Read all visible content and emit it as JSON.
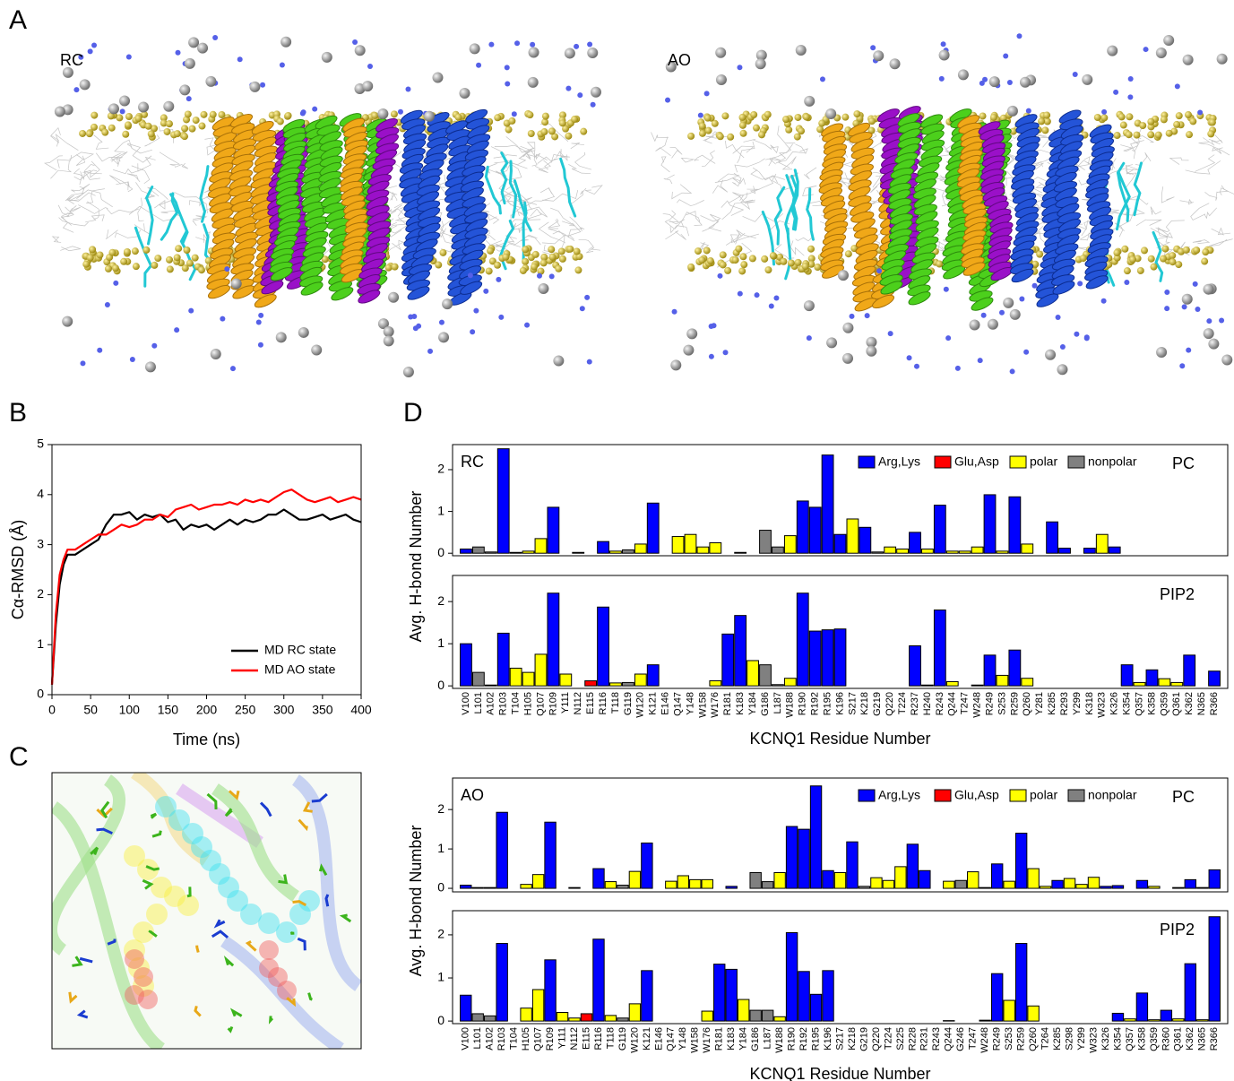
{
  "figure": {
    "panel_labels": [
      "A",
      "B",
      "C",
      "D"
    ],
    "structure_labels": [
      "RC",
      "AO"
    ]
  },
  "chart_data": [
    {
      "type": "line",
      "xlabel": "Time (ns)",
      "ylabel": "Cα-RMSD (Å)",
      "x": [
        0,
        5,
        10,
        15,
        20,
        30,
        40,
        50,
        60,
        70,
        80,
        90,
        100,
        110,
        120,
        130,
        140,
        150,
        160,
        170,
        180,
        190,
        200,
        210,
        220,
        230,
        240,
        250,
        260,
        270,
        280,
        290,
        300,
        310,
        320,
        330,
        340,
        350,
        360,
        370,
        380,
        390,
        400
      ],
      "series": [
        {
          "name": "MD RC state",
          "color": "#000000",
          "values": [
            0.2,
            1.4,
            2.2,
            2.6,
            2.8,
            2.8,
            2.9,
            3.0,
            3.1,
            3.4,
            3.6,
            3.6,
            3.65,
            3.5,
            3.6,
            3.55,
            3.6,
            3.45,
            3.5,
            3.3,
            3.4,
            3.35,
            3.4,
            3.3,
            3.4,
            3.5,
            3.4,
            3.5,
            3.45,
            3.5,
            3.6,
            3.6,
            3.7,
            3.6,
            3.5,
            3.5,
            3.55,
            3.6,
            3.5,
            3.55,
            3.6,
            3.5,
            3.45
          ]
        },
        {
          "name": "MD AO state",
          "color": "#ff0000",
          "values": [
            0.2,
            1.6,
            2.4,
            2.7,
            2.9,
            2.9,
            3.0,
            3.1,
            3.2,
            3.2,
            3.3,
            3.4,
            3.35,
            3.4,
            3.5,
            3.5,
            3.6,
            3.55,
            3.7,
            3.75,
            3.8,
            3.7,
            3.75,
            3.8,
            3.8,
            3.85,
            3.8,
            3.9,
            3.85,
            3.9,
            3.85,
            3.95,
            4.05,
            4.1,
            4.0,
            3.9,
            3.85,
            3.9,
            3.95,
            3.85,
            3.9,
            3.95,
            3.9
          ]
        }
      ],
      "xlim": [
        0,
        400
      ],
      "xticks": [
        0,
        50,
        100,
        150,
        200,
        250,
        300,
        350,
        400
      ],
      "ylim": [
        0,
        5
      ],
      "yticks": [
        0,
        1,
        2,
        3,
        4,
        5
      ],
      "legend": "lower right"
    },
    {
      "type": "bar",
      "state": "RC",
      "xlabel": "KCNQ1 Residue Number",
      "ylabel": "Avg. H-bond Number",
      "categories": [
        "V100",
        "L101",
        "A102",
        "R103",
        "T104",
        "H105",
        "Q107",
        "R109",
        "Y111",
        "N112",
        "E115",
        "R116",
        "T118",
        "G119",
        "W120",
        "K121",
        "E146",
        "Q147",
        "Y148",
        "W158",
        "W176",
        "R181",
        "K183",
        "Y184",
        "G186",
        "L187",
        "W188",
        "R190",
        "R192",
        "R195",
        "K196",
        "S217",
        "K218",
        "G219",
        "Q220",
        "T224",
        "R237",
        "H240",
        "R243",
        "Q244",
        "T247",
        "W248",
        "R249",
        "S253",
        "R259",
        "Q260",
        "Y281",
        "K285",
        "R293",
        "Y299",
        "K318",
        "W323",
        "K326",
        "K354",
        "Q357",
        "K358",
        "Q359",
        "Q361",
        "K362",
        "N365",
        "R366"
      ],
      "category_series": [
        0,
        3,
        3,
        0,
        2,
        2,
        2,
        0,
        2,
        2,
        1,
        0,
        2,
        3,
        2,
        0,
        1,
        2,
        2,
        2,
        2,
        0,
        0,
        2,
        3,
        3,
        2,
        0,
        0,
        0,
        0,
        2,
        0,
        3,
        2,
        2,
        0,
        2,
        0,
        2,
        2,
        2,
        0,
        2,
        0,
        2,
        2,
        0,
        0,
        2,
        0,
        2,
        0,
        0,
        2,
        0,
        2,
        2,
        0,
        2,
        0
      ],
      "series": [
        {
          "name": "Arg,Lys",
          "color": "#0000ff"
        },
        {
          "name": "Glu,Asp",
          "color": "#ff0000"
        },
        {
          "name": "polar",
          "color": "#ffff00"
        },
        {
          "name": "nonpolar",
          "color": "#808080"
        }
      ],
      "legend": "upper right",
      "panels": [
        {
          "label": "PC",
          "ylim": [
            -0.06,
            2.6
          ],
          "yticks": [
            0,
            1,
            2
          ],
          "values": [
            0.1,
            0.15,
            0.03,
            2.5,
            0.02,
            0.05,
            0.35,
            1.1,
            0,
            0.02,
            0,
            0.28,
            0.05,
            0.08,
            0.22,
            1.2,
            0,
            0.4,
            0.45,
            0.15,
            0.25,
            0,
            0.02,
            0,
            0.55,
            0.15,
            0.42,
            1.25,
            1.1,
            2.35,
            0.45,
            0.82,
            0.62,
            0.03,
            0.15,
            0.1,
            0.5,
            0.1,
            1.15,
            0.05,
            0.05,
            0.15,
            1.4,
            0.05,
            1.35,
            0.22,
            0,
            0.75,
            0.12,
            0,
            0.12,
            0.45,
            0.15,
            0,
            0,
            0,
            0,
            0,
            0,
            0,
            0
          ]
        },
        {
          "label": "PIP2",
          "ylim": [
            -0.06,
            2.62
          ],
          "yticks": [
            0,
            1,
            2
          ],
          "values": [
            1.0,
            0.32,
            0.02,
            1.25,
            0.42,
            0.32,
            0.75,
            2.2,
            0.28,
            0,
            0.12,
            1.87,
            0.07,
            0.08,
            0.28,
            0.5,
            0,
            0,
            0,
            0,
            0.12,
            1.23,
            1.67,
            0.6,
            0.5,
            0.03,
            0.18,
            2.2,
            1.3,
            1.33,
            1.35,
            0,
            0,
            0,
            0,
            0,
            0.95,
            0.02,
            1.8,
            0.1,
            0,
            0.02,
            0.73,
            0.25,
            0.85,
            0.18,
            0,
            0,
            0,
            0,
            0,
            0,
            0,
            0.5,
            0.08,
            0.38,
            0.17,
            0.08,
            0.73,
            0,
            0.35
          ]
        }
      ]
    },
    {
      "type": "bar",
      "state": "AO",
      "xlabel": "KCNQ1 Residue Number",
      "ylabel": "Avg. H-bond Number",
      "categories": [
        "V100",
        "L101",
        "A102",
        "R103",
        "T104",
        "H105",
        "Q107",
        "R109",
        "Y111",
        "N112",
        "E115",
        "R116",
        "T118",
        "G119",
        "W120",
        "K121",
        "E146",
        "Q147",
        "Y148",
        "W158",
        "W176",
        "R181",
        "K183",
        "Y184",
        "G186",
        "L187",
        "W188",
        "R190",
        "R192",
        "R195",
        "K196",
        "S217",
        "K218",
        "G219",
        "Q220",
        "T224",
        "S225",
        "R228",
        "R231",
        "R243",
        "Q244",
        "G246",
        "T247",
        "W248",
        "R249",
        "S253",
        "R259",
        "Q260",
        "T264",
        "K285",
        "S298",
        "Y299",
        "W323",
        "K326",
        "K354",
        "Q357",
        "K358",
        "Q359",
        "R360",
        "Q361",
        "K362",
        "N365",
        "R366"
      ],
      "category_series": [
        0,
        3,
        3,
        0,
        2,
        2,
        2,
        0,
        2,
        2,
        1,
        0,
        2,
        3,
        2,
        0,
        1,
        2,
        2,
        2,
        2,
        0,
        0,
        2,
        3,
        3,
        2,
        0,
        0,
        0,
        0,
        2,
        0,
        3,
        2,
        2,
        2,
        0,
        0,
        0,
        2,
        3,
        2,
        2,
        0,
        2,
        0,
        2,
        2,
        0,
        2,
        2,
        2,
        0,
        0,
        2,
        0,
        2,
        0,
        2,
        0,
        2,
        0
      ],
      "series": [
        {
          "name": "Arg,Lys",
          "color": "#0000ff"
        },
        {
          "name": "Glu,Asp",
          "color": "#ff0000"
        },
        {
          "name": "polar",
          "color": "#ffff00"
        },
        {
          "name": "nonpolar",
          "color": "#808080"
        }
      ],
      "legend": "upper right",
      "panels": [
        {
          "label": "PC",
          "ylim": [
            -0.09,
            2.8
          ],
          "yticks": [
            0,
            1,
            2
          ],
          "values": [
            0.08,
            0.02,
            0.02,
            1.93,
            0,
            0.1,
            0.35,
            1.68,
            0,
            0.02,
            0,
            0.5,
            0.17,
            0.08,
            0.43,
            1.15,
            0,
            0.18,
            0.32,
            0.22,
            0.22,
            0,
            0.05,
            0,
            0.4,
            0.17,
            0.4,
            1.57,
            1.5,
            2.6,
            0.45,
            0.4,
            1.18,
            0.05,
            0.27,
            0.2,
            0.55,
            1.12,
            0.45,
            0,
            0.18,
            0.2,
            0.42,
            0.02,
            0.62,
            0.18,
            1.4,
            0.5,
            0.05,
            0.2,
            0.25,
            0.1,
            0.28,
            0.05,
            0.07,
            0,
            0.2,
            0.05,
            0,
            0.02,
            0.22,
            0.02,
            0.47
          ]
        },
        {
          "label": "PIP2",
          "ylim": [
            -0.06,
            2.56
          ],
          "yticks": [
            0,
            1,
            2
          ],
          "values": [
            0.6,
            0.17,
            0.12,
            1.8,
            0,
            0.3,
            0.73,
            1.42,
            0.2,
            0.07,
            0.17,
            1.9,
            0.13,
            0.07,
            0.4,
            1.17,
            0,
            0,
            0,
            0,
            0.23,
            1.32,
            1.2,
            0.5,
            0.25,
            0.25,
            0.1,
            2.05,
            1.15,
            0.62,
            1.17,
            0,
            0,
            0,
            0,
            0,
            0,
            0,
            0,
            0,
            0.01,
            0,
            0,
            0.02,
            1.1,
            0.48,
            1.8,
            0.35,
            0,
            0,
            0,
            0,
            0,
            0,
            0.18,
            0.05,
            0.65,
            0.03,
            0.25,
            0.05,
            1.33,
            0.03,
            2.42
          ]
        }
      ]
    }
  ]
}
